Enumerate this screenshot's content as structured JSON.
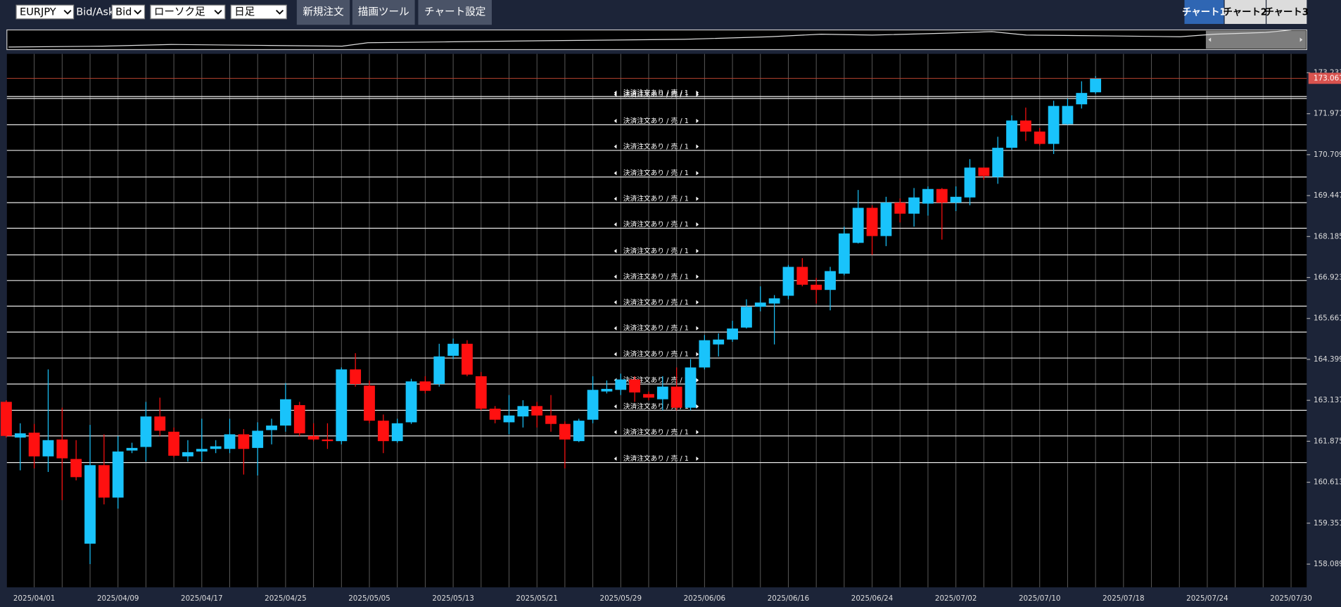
{
  "toolbar": {
    "symbol": "EURJPY",
    "bid_ask_label": "Bid/Ask",
    "price_type": "Bid",
    "chart_type": "ローソク足",
    "timeframe": "日足",
    "buttons": [
      "新規注文",
      "描画ツール",
      "チャート設定"
    ],
    "tabs": [
      "チャート1",
      "チャート2",
      "チャート3"
    ]
  },
  "chart_data": {
    "type": "candlestick",
    "categories": [
      null,
      null,
      "2025/04/01",
      null,
      null,
      null,
      null,
      null,
      "2025/04/09",
      null,
      null,
      null,
      null,
      null,
      "2025/04/17",
      null,
      null,
      null,
      null,
      null,
      "2025/04/25",
      null,
      null,
      null,
      null,
      null,
      "2025/05/05",
      null,
      null,
      null,
      null,
      null,
      "2025/05/13",
      null,
      null,
      null,
      null,
      null,
      "2025/05/21",
      null,
      null,
      null,
      null,
      null,
      "2025/05/29",
      null,
      null,
      null,
      null,
      null,
      "2025/06/06",
      null,
      null,
      null,
      null,
      null,
      "2025/06/16",
      null,
      null,
      null,
      null,
      null,
      "2025/06/24",
      null,
      null,
      null,
      null,
      null,
      "2025/07/02",
      null,
      null,
      null,
      null,
      null,
      "2025/07/10",
      null,
      null,
      null,
      null,
      null,
      "2025/07/18",
      null,
      null,
      null,
      null,
      null,
      "2025/07/24",
      null,
      null,
      null,
      null,
      null,
      "2025/07/30"
    ],
    "open": [
      163.09,
      161.99,
      162.14,
      161.41,
      161.93,
      161.33,
      158.72,
      161.14,
      160.14,
      161.59,
      161.7,
      162.64,
      162.17,
      161.41,
      161.56,
      161.64,
      161.64,
      162.09,
      161.67,
      162.22,
      162.36,
      162.99,
      162.04,
      161.93,
      161.88,
      164.09,
      163.59,
      162.51,
      161.88,
      162.46,
      163.72,
      163.64,
      164.51,
      164.88,
      163.88,
      162.88,
      162.46,
      162.64,
      162.96,
      162.67,
      162.41,
      161.88,
      162.54,
      163.41,
      163.46,
      163.78,
      163.33,
      163.17,
      163.56,
      162.91,
      164.15,
      164.86,
      165.01,
      165.38,
      166.02,
      166.12,
      166.36,
      167.25,
      166.7,
      166.54,
      167.04,
      167.99,
      169.07,
      168.2,
      169.23,
      168.89,
      169.2,
      169.65,
      169.23,
      169.39,
      170.31,
      170.02,
      170.92,
      171.76,
      171.42,
      171.04,
      171.65,
      172.26,
      172.63,
      null,
      null,
      null,
      null,
      null,
      null,
      null,
      null,
      null,
      null,
      null,
      null,
      null,
      null
    ],
    "high": [
      163.14,
      162.43,
      162.41,
      164.09,
      162.91,
      161.91,
      162.38,
      162.09,
      162.04,
      161.83,
      163.09,
      163.22,
      162.3,
      161.91,
      162.57,
      161.91,
      162.57,
      162.25,
      162.46,
      162.57,
      163.67,
      163.09,
      162.43,
      162.43,
      164.15,
      164.59,
      163.75,
      162.7,
      162.57,
      163.8,
      163.88,
      164.88,
      165.04,
      164.99,
      164.01,
      162.96,
      163.3,
      163.14,
      163.09,
      163.3,
      162.49,
      162.57,
      163.88,
      163.75,
      163.96,
      163.88,
      163.41,
      163.88,
      164.15,
      164.41,
      165.15,
      165.2,
      165.59,
      166.25,
      166.65,
      166.38,
      167.31,
      167.52,
      166.91,
      167.25,
      168.49,
      169.62,
      169.15,
      169.41,
      169.36,
      169.68,
      169.73,
      169.68,
      169.73,
      170.57,
      170.31,
      171.26,
      171.92,
      172.16,
      171.53,
      172.37,
      172.44,
      172.97,
      173.13,
      null,
      null,
      null,
      null,
      null,
      null,
      null,
      null,
      null,
      null,
      null,
      null,
      null,
      null
    ],
    "low": [
      161.99,
      160.98,
      161.04,
      160.93,
      160.06,
      160.67,
      158.09,
      159.93,
      159.8,
      161.51,
      161.25,
      162.04,
      161.38,
      161.25,
      161.25,
      161.51,
      161.51,
      160.85,
      160.82,
      161.78,
      162.17,
      162.04,
      161.88,
      161.64,
      161.78,
      163.56,
      162.43,
      161.51,
      161.83,
      162.41,
      163.35,
      163.56,
      164.41,
      163.88,
      162.83,
      162.43,
      162.09,
      162.3,
      162.3,
      162.17,
      161.04,
      161.85,
      162.43,
      163.35,
      163.3,
      163.09,
      163.14,
      162.83,
      162.83,
      162.83,
      164.09,
      164.49,
      164.94,
      165.35,
      165.88,
      164.86,
      166.25,
      166.65,
      166.12,
      165.91,
      166.99,
      167.97,
      167.62,
      167.89,
      168.62,
      168.49,
      168.83,
      168.09,
      168.97,
      169.15,
      169.94,
      169.81,
      170.86,
      171.13,
      170.99,
      170.73,
      171.63,
      172.13,
      172.58,
      null,
      null,
      null,
      null,
      null,
      null,
      null,
      null,
      null,
      null,
      null,
      null,
      null,
      null
    ],
    "close": [
      162.04,
      162.12,
      161.41,
      161.91,
      161.35,
      160.77,
      161.14,
      160.14,
      161.56,
      161.67,
      162.64,
      162.2,
      161.43,
      161.54,
      161.64,
      161.72,
      162.09,
      161.64,
      162.2,
      162.36,
      163.17,
      162.12,
      161.93,
      161.88,
      164.09,
      163.64,
      162.51,
      161.88,
      162.43,
      163.72,
      163.43,
      164.49,
      164.88,
      163.93,
      162.88,
      162.54,
      162.67,
      162.96,
      162.67,
      162.41,
      161.93,
      162.51,
      163.46,
      163.49,
      163.78,
      163.38,
      163.22,
      163.56,
      162.91,
      164.15,
      164.99,
      165.01,
      165.35,
      166.02,
      166.15,
      166.28,
      167.25,
      166.7,
      166.54,
      167.12,
      168.28,
      169.07,
      168.2,
      169.23,
      168.89,
      169.39,
      169.65,
      169.23,
      169.41,
      170.31,
      170.05,
      170.92,
      171.76,
      171.42,
      171.04,
      172.21,
      172.21,
      172.61,
      173.061,
      null,
      null,
      null,
      null,
      null,
      null,
      null,
      null,
      null,
      null,
      null,
      null,
      null,
      null
    ],
    "up_color": "#19c3fb",
    "down_color": "#ff1010",
    "ylim": [
      157.374,
      173.815
    ],
    "yticks": [
      158.089,
      159.351,
      160.613,
      161.875,
      163.137,
      164.399,
      165.661,
      166.923,
      168.185,
      169.447,
      170.709,
      171.971,
      173.233
    ],
    "current_price": 173.061,
    "orders": [
      {
        "label": "決済注文あり / 売 / 1",
        "price": 172.5
      },
      {
        "label": "決済注文あり / 売 / 1",
        "price": 172.44
      },
      {
        "label": "決済注文あり / 売 / 1",
        "price": 171.63
      },
      {
        "label": "決済注文あり / 売 / 1",
        "price": 170.84
      },
      {
        "label": "決済注文あり / 売 / 1",
        "price": 170.02
      },
      {
        "label": "決済注文あり / 売 / 1",
        "price": 169.23
      },
      {
        "label": "決済注文あり / 売 / 1",
        "price": 168.44
      },
      {
        "label": "決済注文あり / 売 / 1",
        "price": 167.62
      },
      {
        "label": "決済注文あり / 売 / 1",
        "price": 166.83
      },
      {
        "label": "決済注文あり / 売 / 1",
        "price": 166.04
      },
      {
        "label": "決済注文あり / 売 / 1",
        "price": 165.24
      },
      {
        "label": "決済注文あり / 売 / 1",
        "price": 164.44
      },
      {
        "label": "決済注文あり / 売 / 1",
        "price": 163.64
      },
      {
        "label": "決済注文あり / 売 / 1",
        "price": 162.83
      },
      {
        "label": "決済注文あり / 売 / 1",
        "price": 162.04
      },
      {
        "label": "決済注文あり / 売 / 1",
        "price": 161.22
      }
    ]
  }
}
